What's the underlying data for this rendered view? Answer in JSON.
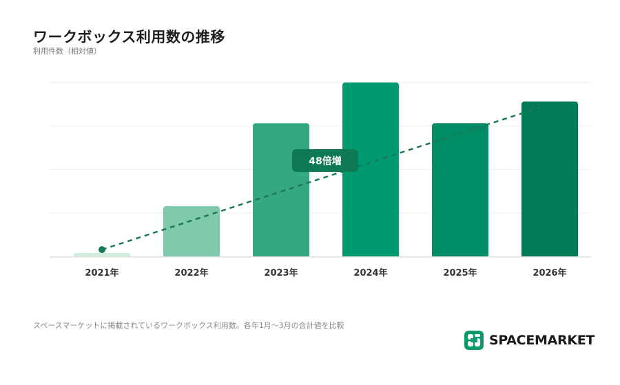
{
  "header": {
    "title": "ワークボックス利用数の推移",
    "subtitle": "利用件数（相対値）"
  },
  "footer": {
    "note": "スペースマーケットに掲載されているワークボックス利用数。各年1月〜3月の合計値を比較",
    "brand": "SPACEMARKET",
    "brand_icon": "spacemarket-logo-icon"
  },
  "colors": {
    "bars": [
      "#cdeedd",
      "#7fc9ad",
      "#34a882",
      "#009a72",
      "#008c65",
      "#007a57"
    ],
    "trend": "#1a7a56",
    "badge": "#0e7a55",
    "grid": "#eeeeee",
    "axis": "#dddddd"
  },
  "chart_data": {
    "type": "bar",
    "title": "ワークボックス利用数の推移",
    "ylabel": "利用件数（相対値）",
    "xlabel": "",
    "categories": [
      "2021年",
      "2022年",
      "2023年",
      "2024年",
      "2025年",
      "2026年"
    ],
    "values": [
      1.3,
      18.5,
      49,
      64,
      49,
      57
    ],
    "ylim": [
      0,
      64
    ],
    "grid": true,
    "trend_line": {
      "style": "dashed",
      "from": {
        "category": "2021年",
        "value": 2.5
      },
      "to": {
        "category": "2026年",
        "value": 55
      }
    },
    "annotation": "48倍増"
  }
}
